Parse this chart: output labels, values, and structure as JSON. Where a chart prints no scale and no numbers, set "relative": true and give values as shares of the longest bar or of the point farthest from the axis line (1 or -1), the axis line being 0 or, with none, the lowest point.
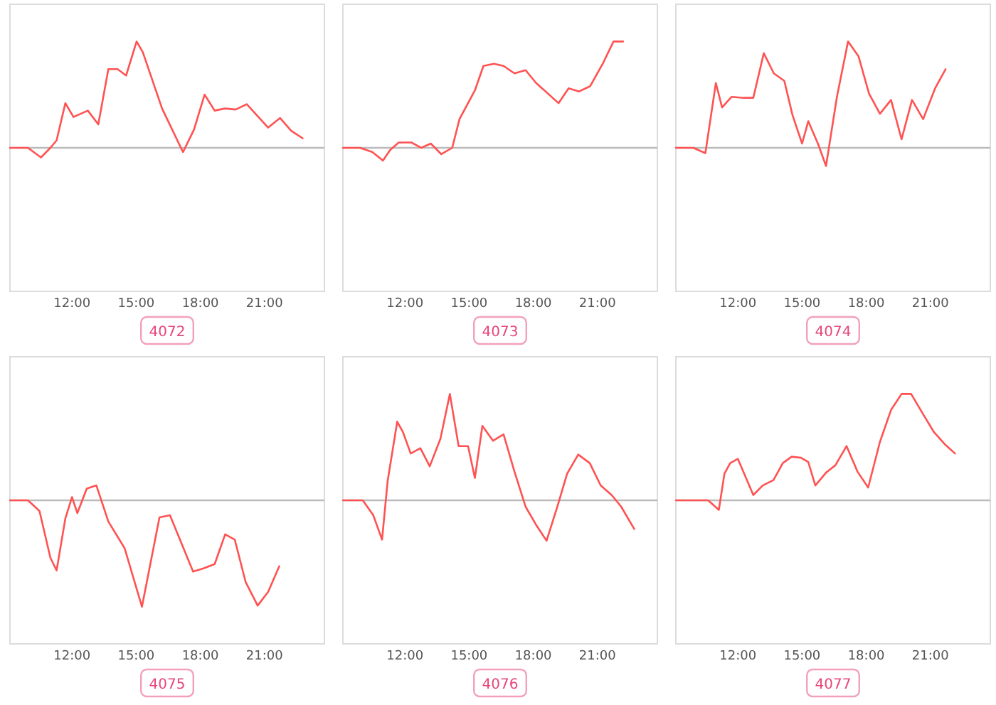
{
  "chart_data": [
    {
      "type": "line",
      "title": "4072",
      "relative": true,
      "color": "#ff5252",
      "xlim": [
        9.1,
        23.8
      ],
      "xticks": [
        {
          "value": 12,
          "label": "12:00"
        },
        {
          "value": 15,
          "label": "15:00"
        },
        {
          "value": 18,
          "label": "18:00"
        },
        {
          "value": 21,
          "label": "21:00"
        }
      ],
      "x": [
        9.1,
        9.94,
        10.55,
        10.99,
        11.28,
        11.69,
        12.07,
        12.74,
        13.23,
        13.7,
        14.13,
        14.53,
        15.02,
        15.31,
        16.21,
        17.19,
        17.7,
        18.2,
        18.67,
        19.16,
        19.65,
        20.17,
        21.17,
        21.73,
        22.25,
        22.78
      ],
      "values": [
        0,
        0,
        -0.09,
        0,
        0.07,
        0.42,
        0.29,
        0.35,
        0.22,
        0.74,
        0.74,
        0.68,
        1,
        0.9,
        0.37,
        -0.04,
        0.17,
        0.5,
        0.35,
        0.37,
        0.36,
        0.41,
        0.19,
        0.28,
        0.16,
        0.09
      ]
    },
    {
      "type": "line",
      "title": "4073",
      "relative": true,
      "color": "#ff5252",
      "xlim": [
        9.1,
        23.8
      ],
      "xticks": [
        {
          "value": 12,
          "label": "12:00"
        },
        {
          "value": 15,
          "label": "15:00"
        },
        {
          "value": 18,
          "label": "18:00"
        },
        {
          "value": 21,
          "label": "21:00"
        }
      ],
      "x": [
        9.1,
        9.9,
        10.48,
        10.97,
        11.31,
        11.71,
        12.31,
        12.76,
        13.21,
        13.7,
        14.21,
        14.55,
        15.27,
        15.67,
        16.16,
        16.61,
        17.12,
        17.64,
        18.13,
        19.18,
        19.65,
        20.14,
        20.66,
        21.27,
        21.75,
        22.2
      ],
      "values": [
        0,
        0,
        -0.04,
        -0.12,
        -0.02,
        0.05,
        0.05,
        0,
        0.04,
        -0.06,
        0,
        0.27,
        0.54,
        0.77,
        0.79,
        0.77,
        0.7,
        0.73,
        0.61,
        0.42,
        0.56,
        0.53,
        0.58,
        0.8,
        1,
        1
      ]
    },
    {
      "type": "line",
      "title": "4074",
      "relative": true,
      "color": "#ff5252",
      "xlim": [
        9.1,
        23.8
      ],
      "xticks": [
        {
          "value": 12,
          "label": "12:00"
        },
        {
          "value": 15,
          "label": "15:00"
        },
        {
          "value": 18,
          "label": "18:00"
        },
        {
          "value": 21,
          "label": "21:00"
        }
      ],
      "x": [
        9.1,
        9.92,
        10.48,
        10.97,
        11.26,
        11.71,
        12.27,
        12.72,
        13.21,
        13.68,
        14.17,
        14.55,
        15,
        15.29,
        15.74,
        16.12,
        16.63,
        17.15,
        17.64,
        18.13,
        18.64,
        19.16,
        19.65,
        20.14,
        20.66,
        21.22,
        21.71
      ],
      "values": [
        0,
        0,
        -0.05,
        0.61,
        0.38,
        0.48,
        0.47,
        0.47,
        0.89,
        0.7,
        0.63,
        0.31,
        0.04,
        0.25,
        0.04,
        -0.17,
        0.48,
        1,
        0.86,
        0.51,
        0.32,
        0.45,
        0.08,
        0.45,
        0.27,
        0.56,
        0.74
      ]
    },
    {
      "type": "line",
      "title": "4075",
      "relative": true,
      "color": "#ff5252",
      "xlim": [
        9.1,
        23.8
      ],
      "xticks": [
        {
          "value": 12,
          "label": "12:00"
        },
        {
          "value": 15,
          "label": "15:00"
        },
        {
          "value": 18,
          "label": "18:00"
        },
        {
          "value": 21,
          "label": "21:00"
        }
      ],
      "x": [
        9.1,
        9.94,
        10.48,
        10.99,
        11.28,
        11.69,
        12,
        12.25,
        12.69,
        13.14,
        13.7,
        14.46,
        15.27,
        16.09,
        16.58,
        17.66,
        18.15,
        18.67,
        19.16,
        19.61,
        20.12,
        20.68,
        21.17,
        21.69
      ],
      "values": [
        0,
        0,
        -0.1,
        -0.54,
        -0.66,
        -0.17,
        0.03,
        -0.12,
        0.11,
        0.14,
        -0.2,
        -0.45,
        -1,
        -0.16,
        -0.14,
        -0.67,
        -0.64,
        -0.6,
        -0.32,
        -0.37,
        -0.77,
        -0.99,
        -0.86,
        -0.62
      ]
    },
    {
      "type": "line",
      "title": "4076",
      "relative": true,
      "color": "#ff5252",
      "xlim": [
        9.1,
        23.8
      ],
      "xticks": [
        {
          "value": 12,
          "label": "12:00"
        },
        {
          "value": 15,
          "label": "15:00"
        },
        {
          "value": 18,
          "label": "18:00"
        },
        {
          "value": 21,
          "label": "21:00"
        }
      ],
      "x": [
        9.1,
        10.03,
        10.52,
        10.93,
        11.19,
        11.64,
        11.91,
        12.27,
        12.72,
        13.16,
        13.66,
        14.1,
        14.51,
        14.95,
        15.27,
        15.62,
        16.12,
        16.61,
        17.12,
        17.64,
        18.13,
        18.62,
        19.14,
        19.58,
        20.1,
        20.64,
        21.15,
        21.66,
        22.11,
        22.72
      ],
      "values": [
        0,
        0,
        -0.14,
        -0.37,
        0.18,
        0.74,
        0.64,
        0.44,
        0.49,
        0.32,
        0.58,
        1,
        0.51,
        0.51,
        0.21,
        0.7,
        0.56,
        0.62,
        0.27,
        -0.06,
        -0.23,
        -0.38,
        -0.05,
        0.25,
        0.43,
        0.35,
        0.14,
        0.05,
        -0.06,
        -0.27
      ]
    },
    {
      "type": "line",
      "title": "4077",
      "relative": true,
      "color": "#ff5252",
      "xlim": [
        9.1,
        23.8
      ],
      "xticks": [
        {
          "value": 12,
          "label": "12:00"
        },
        {
          "value": 15,
          "label": "15:00"
        },
        {
          "value": 18,
          "label": "18:00"
        },
        {
          "value": 21,
          "label": "21:00"
        }
      ],
      "x": [
        9.1,
        10.61,
        11.11,
        11.37,
        11.64,
        12,
        12.72,
        13.16,
        13.66,
        14.1,
        14.51,
        14.95,
        15.29,
        15.62,
        16.12,
        16.56,
        17.08,
        17.59,
        18.09,
        18.64,
        19.16,
        19.65,
        20.1,
        20.66,
        21.17,
        21.66,
        22.15
      ],
      "values": [
        0,
        0,
        -0.09,
        0.25,
        0.35,
        0.39,
        0.05,
        0.14,
        0.19,
        0.35,
        0.41,
        0.4,
        0.36,
        0.14,
        0.26,
        0.33,
        0.51,
        0.27,
        0.12,
        0.55,
        0.85,
        1,
        1,
        0.81,
        0.64,
        0.53,
        0.44
      ]
    }
  ]
}
